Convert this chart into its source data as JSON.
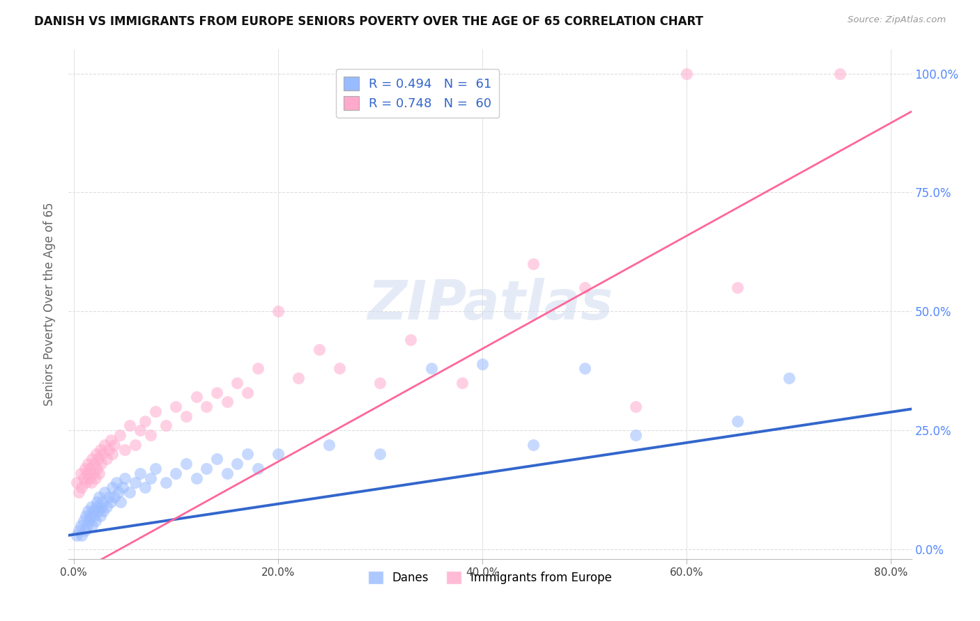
{
  "title": "DANISH VS IMMIGRANTS FROM EUROPE SENIORS POVERTY OVER THE AGE OF 65 CORRELATION CHART",
  "source": "Source: ZipAtlas.com",
  "ylabel": "Seniors Poverty Over the Age of 65",
  "xlabel_ticks": [
    "0.0%",
    "20.0%",
    "40.0%",
    "60.0%",
    "80.0%"
  ],
  "xlabel_vals": [
    0.0,
    0.2,
    0.4,
    0.6,
    0.8
  ],
  "ylabel_ticks": [
    "0.0%",
    "25.0%",
    "50.0%",
    "75.0%",
    "100.0%"
  ],
  "ylabel_vals": [
    0.0,
    0.25,
    0.5,
    0.75,
    1.0
  ],
  "xmin": -0.005,
  "xmax": 0.82,
  "ymin": -0.02,
  "ymax": 1.05,
  "danes_R": 0.494,
  "danes_N": 61,
  "immigrants_R": 0.748,
  "immigrants_N": 60,
  "danes_color": "#99BBFF",
  "immigrants_color": "#FFAACC",
  "danes_line_color": "#3366CC",
  "immigrants_line_color": "#FF6699",
  "legend_label_danes": "Danes",
  "legend_label_immigrants": "Immigrants from Europe",
  "watermark": "ZIPatlas",
  "danes_line": [
    [
      -0.01,
      0.028
    ],
    [
      0.82,
      0.295
    ]
  ],
  "immigrants_line": [
    [
      -0.01,
      -0.065
    ],
    [
      0.82,
      0.92
    ]
  ],
  "danes_scatter": [
    [
      0.003,
      0.03
    ],
    [
      0.005,
      0.04
    ],
    [
      0.007,
      0.05
    ],
    [
      0.008,
      0.03
    ],
    [
      0.01,
      0.06
    ],
    [
      0.011,
      0.04
    ],
    [
      0.012,
      0.07
    ],
    [
      0.013,
      0.05
    ],
    [
      0.014,
      0.08
    ],
    [
      0.015,
      0.06
    ],
    [
      0.016,
      0.07
    ],
    [
      0.017,
      0.09
    ],
    [
      0.018,
      0.05
    ],
    [
      0.019,
      0.08
    ],
    [
      0.02,
      0.07
    ],
    [
      0.021,
      0.06
    ],
    [
      0.022,
      0.09
    ],
    [
      0.023,
      0.1
    ],
    [
      0.024,
      0.08
    ],
    [
      0.025,
      0.11
    ],
    [
      0.026,
      0.07
    ],
    [
      0.027,
      0.09
    ],
    [
      0.028,
      0.1
    ],
    [
      0.029,
      0.08
    ],
    [
      0.03,
      0.12
    ],
    [
      0.032,
      0.09
    ],
    [
      0.034,
      0.11
    ],
    [
      0.036,
      0.1
    ],
    [
      0.038,
      0.13
    ],
    [
      0.04,
      0.11
    ],
    [
      0.042,
      0.14
    ],
    [
      0.044,
      0.12
    ],
    [
      0.046,
      0.1
    ],
    [
      0.048,
      0.13
    ],
    [
      0.05,
      0.15
    ],
    [
      0.055,
      0.12
    ],
    [
      0.06,
      0.14
    ],
    [
      0.065,
      0.16
    ],
    [
      0.07,
      0.13
    ],
    [
      0.075,
      0.15
    ],
    [
      0.08,
      0.17
    ],
    [
      0.09,
      0.14
    ],
    [
      0.1,
      0.16
    ],
    [
      0.11,
      0.18
    ],
    [
      0.12,
      0.15
    ],
    [
      0.13,
      0.17
    ],
    [
      0.14,
      0.19
    ],
    [
      0.15,
      0.16
    ],
    [
      0.16,
      0.18
    ],
    [
      0.17,
      0.2
    ],
    [
      0.18,
      0.17
    ],
    [
      0.2,
      0.2
    ],
    [
      0.25,
      0.22
    ],
    [
      0.3,
      0.2
    ],
    [
      0.35,
      0.38
    ],
    [
      0.4,
      0.39
    ],
    [
      0.45,
      0.22
    ],
    [
      0.5,
      0.38
    ],
    [
      0.55,
      0.24
    ],
    [
      0.65,
      0.27
    ],
    [
      0.7,
      0.36
    ]
  ],
  "immigrants_scatter": [
    [
      0.003,
      0.14
    ],
    [
      0.005,
      0.12
    ],
    [
      0.007,
      0.16
    ],
    [
      0.008,
      0.13
    ],
    [
      0.01,
      0.15
    ],
    [
      0.011,
      0.17
    ],
    [
      0.012,
      0.14
    ],
    [
      0.013,
      0.16
    ],
    [
      0.014,
      0.18
    ],
    [
      0.015,
      0.15
    ],
    [
      0.016,
      0.17
    ],
    [
      0.017,
      0.14
    ],
    [
      0.018,
      0.19
    ],
    [
      0.019,
      0.16
    ],
    [
      0.02,
      0.18
    ],
    [
      0.021,
      0.15
    ],
    [
      0.022,
      0.2
    ],
    [
      0.023,
      0.17
    ],
    [
      0.024,
      0.19
    ],
    [
      0.025,
      0.16
    ],
    [
      0.026,
      0.21
    ],
    [
      0.027,
      0.18
    ],
    [
      0.028,
      0.2
    ],
    [
      0.03,
      0.22
    ],
    [
      0.032,
      0.19
    ],
    [
      0.034,
      0.21
    ],
    [
      0.036,
      0.23
    ],
    [
      0.038,
      0.2
    ],
    [
      0.04,
      0.22
    ],
    [
      0.045,
      0.24
    ],
    [
      0.05,
      0.21
    ],
    [
      0.055,
      0.26
    ],
    [
      0.06,
      0.22
    ],
    [
      0.065,
      0.25
    ],
    [
      0.07,
      0.27
    ],
    [
      0.075,
      0.24
    ],
    [
      0.08,
      0.29
    ],
    [
      0.09,
      0.26
    ],
    [
      0.1,
      0.3
    ],
    [
      0.11,
      0.28
    ],
    [
      0.12,
      0.32
    ],
    [
      0.13,
      0.3
    ],
    [
      0.14,
      0.33
    ],
    [
      0.15,
      0.31
    ],
    [
      0.16,
      0.35
    ],
    [
      0.17,
      0.33
    ],
    [
      0.18,
      0.38
    ],
    [
      0.2,
      0.5
    ],
    [
      0.22,
      0.36
    ],
    [
      0.24,
      0.42
    ],
    [
      0.26,
      0.38
    ],
    [
      0.3,
      0.35
    ],
    [
      0.33,
      0.44
    ],
    [
      0.38,
      0.35
    ],
    [
      0.45,
      0.6
    ],
    [
      0.5,
      0.55
    ],
    [
      0.55,
      0.3
    ],
    [
      0.6,
      1.0
    ],
    [
      0.65,
      0.55
    ],
    [
      0.75,
      1.0
    ]
  ]
}
